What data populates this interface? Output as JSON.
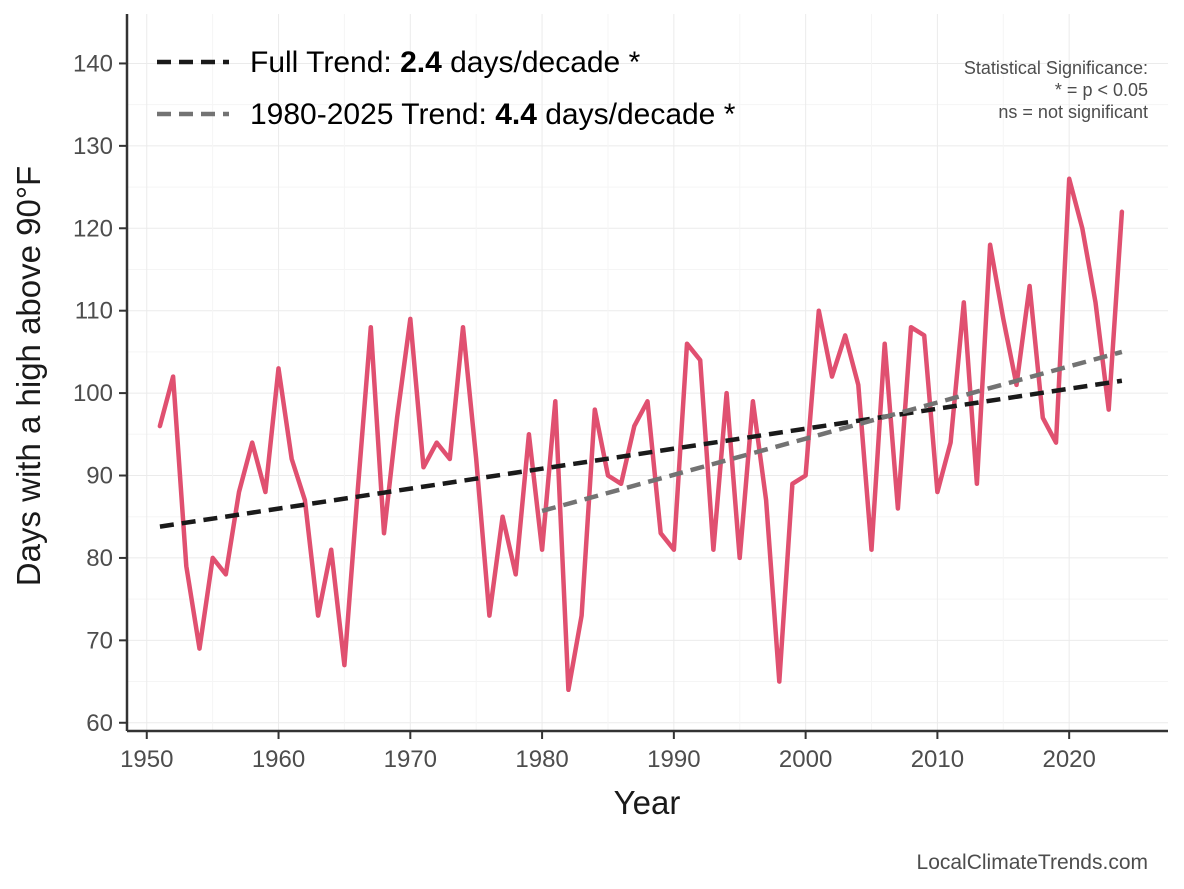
{
  "chart_data": {
    "type": "line",
    "title": "",
    "xlabel": "Year",
    "ylabel": "Days with a high above 90°F",
    "xlim": [
      1948.5,
      2027.5
    ],
    "ylim": [
      59,
      146
    ],
    "x_ticks": [
      1950,
      1960,
      1970,
      1980,
      1990,
      2000,
      2010,
      2020
    ],
    "x_tick_labels": [
      "1950",
      "1960",
      "1970",
      "1980",
      "1990",
      "2000",
      "2010",
      "2020"
    ],
    "y_ticks": [
      60,
      70,
      80,
      90,
      100,
      110,
      120,
      130,
      140
    ],
    "y_tick_labels": [
      "60",
      "70",
      "80",
      "90",
      "100",
      "110",
      "120",
      "130",
      "140"
    ],
    "grid": true,
    "legend_position": "top-left",
    "series": [
      {
        "color": "#e05070",
        "x": [
          1951,
          1952,
          1953,
          1954,
          1955,
          1956,
          1957,
          1958,
          1959,
          1960,
          1961,
          1962,
          1963,
          1964,
          1965,
          1966,
          1967,
          1968,
          1969,
          1970,
          1971,
          1972,
          1973,
          1974,
          1975,
          1976,
          1977,
          1978,
          1979,
          1980,
          1981,
          1982,
          1983,
          1984,
          1985,
          1986,
          1987,
          1988,
          1989,
          1990,
          1991,
          1992,
          1993,
          1994,
          1995,
          1996,
          1997,
          1998,
          1999,
          2000,
          2001,
          2002,
          2003,
          2004,
          2005,
          2006,
          2007,
          2008,
          2009,
          2010,
          2011,
          2012,
          2013,
          2014,
          2015,
          2016,
          2017,
          2018,
          2019,
          2020,
          2021,
          2022,
          2023,
          2024
        ],
        "values": [
          96,
          102,
          79,
          69,
          80,
          78,
          88,
          94,
          88,
          103,
          92,
          87,
          73,
          81,
          67,
          88,
          108,
          83,
          97,
          109,
          91,
          94,
          92,
          108,
          92,
          73,
          85,
          78,
          95,
          81,
          99,
          64,
          73,
          98,
          90,
          89,
          96,
          99,
          83,
          81,
          106,
          104,
          81,
          100,
          80,
          99,
          87,
          65,
          89,
          90,
          110,
          102,
          107,
          101,
          81,
          106,
          86,
          108,
          107,
          88,
          94,
          111,
          89,
          118,
          109,
          101,
          113,
          97,
          94,
          126,
          120,
          111,
          98,
          122
        ]
      }
    ],
    "trends": [
      {
        "label_prefix": "Full Trend: ",
        "label_value": "2.4",
        "label_suffix": " days/decade *",
        "color": "#1a1a1a",
        "x": [
          1951,
          2024
        ],
        "values": [
          83.8,
          101.5
        ]
      },
      {
        "label_prefix": "1980-2025 Trend: ",
        "label_value": "4.4",
        "label_suffix": " days/decade *",
        "color": "#737373",
        "x": [
          1980,
          2024
        ],
        "values": [
          85.7,
          105.0
        ]
      }
    ],
    "annotations": {
      "significance_lines": [
        "Statistical Significance:",
        "* = p < 0.05",
        "ns = not significant"
      ],
      "source": "LocalClimateTrends.com"
    }
  }
}
